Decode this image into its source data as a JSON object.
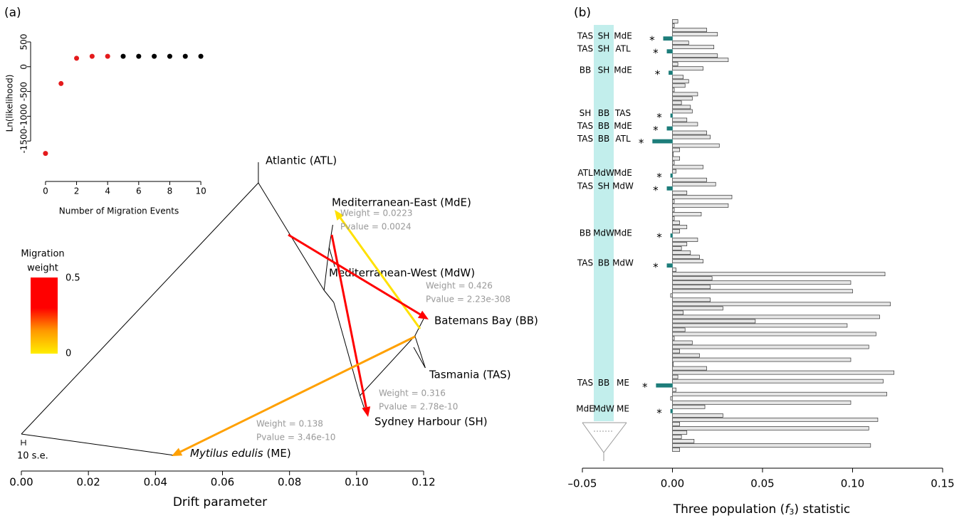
{
  "panel_labels": [
    "(a)",
    "(b)"
  ],
  "chart_data": [
    {
      "type": "scatter",
      "xlabel": "Number of Migration Events",
      "ylabel": "Ln(likelihood)",
      "x": [
        0,
        1,
        2,
        3,
        4,
        5,
        6,
        7,
        8,
        9,
        10
      ],
      "values": [
        -1750,
        -340,
        170,
        210,
        210,
        210,
        210,
        210,
        210,
        210,
        210
      ],
      "point_colors": [
        "#e41a1c",
        "#e41a1c",
        "#e41a1c",
        "#e41a1c",
        "#e41a1c",
        "#000000",
        "#000000",
        "#000000",
        "#000000",
        "#000000",
        "#000000"
      ],
      "xlim": [
        -0.5,
        10.5
      ],
      "xticks": [
        0,
        2,
        4,
        6,
        8,
        10
      ],
      "ylim": [
        -2100,
        700
      ],
      "yticks": [
        -1500,
        -1000,
        -500,
        0,
        500
      ]
    },
    {
      "type": "tree",
      "xlabel": "Drift parameter",
      "scale_bar_label": "10 s.e.",
      "xlim": [
        0,
        0.12
      ],
      "xticks": [
        {
          "value": 0,
          "label": "0.00"
        },
        {
          "value": 0.02,
          "label": "0.02"
        },
        {
          "value": 0.04,
          "label": "0.04"
        },
        {
          "value": 0.06,
          "label": "0.06"
        },
        {
          "value": 0.08,
          "label": "0.08"
        },
        {
          "value": 0.1,
          "label": "0.10"
        },
        {
          "value": 0.12,
          "label": "0.12"
        }
      ],
      "nodes": [
        {
          "x": 0
        },
        {
          "x": 0.0707,
          "parent": 0
        },
        {
          "x": 0.0707,
          "parent": 1,
          "label": "Atlantic (ATL)"
        },
        {
          "x": 0.0457,
          "parent": 0,
          "label_italic": "Mytilus edulis",
          "label": "(ME)"
        },
        {
          "x": 0.0903,
          "parent": 1
        },
        {
          "x": 0.0918,
          "parent": 4
        },
        {
          "x": 0.0929,
          "parent": 5,
          "label": "Mediterranean-East (MdE)"
        },
        {
          "x": 0.0935,
          "parent": 5,
          "label": "Mediterranean-West (MdW)"
        },
        {
          "x": 0.0932,
          "parent": 4
        },
        {
          "x": 0.101,
          "parent": 8
        },
        {
          "x": 0.1024,
          "parent": 9,
          "label": "Sydney Harbour (SH)"
        },
        {
          "x": 0.1174,
          "parent": 9
        },
        {
          "x": 0.12,
          "parent": 11,
          "label": "Batemans Bay (BB)"
        },
        {
          "x": 0.1205,
          "parent": 11,
          "label": "Tasmania (TAS)"
        }
      ],
      "migrations": [
        {
          "weight": 0.0223,
          "weight_label": "Weight = 0.0223",
          "pvalue_label": "Pvalue = 0.0024"
        },
        {
          "weight": 0.426,
          "weight_label": "Weight = 0.426",
          "pvalue_label": "Pvalue = 2.23e-308"
        },
        {
          "weight": 0.316,
          "weight_label": "Weight = 0.316",
          "pvalue_label": "Pvalue = 2.78e-10"
        },
        {
          "weight": 0.138,
          "weight_label": "Weight = 0.138",
          "pvalue_label": "Pvalue = 3.46e-10"
        }
      ],
      "legend_title": [
        "Migration",
        "weight"
      ],
      "clim": [
        0,
        0.5
      ]
    },
    {
      "type": "hbar",
      "xlabel_parts": [
        "Three population (",
        "f",
        "3",
        ") statistic"
      ],
      "color": "#e6e6e6",
      "highlight_color": "#1d7d7a",
      "values": [
        0.003,
        0.001,
        0.019,
        0.025,
        -0.005,
        0.009,
        0.023,
        -0.003,
        0.025,
        0.031,
        0.003,
        0.017,
        -0.002,
        0.006,
        0.009,
        0.007,
        0.001,
        0.014,
        0.011,
        0.005,
        0.01,
        0.011,
        -0.001,
        0.008,
        0.014,
        -0.003,
        0.019,
        0.021,
        -0.011,
        0.026,
        0.004,
        0.0005,
        0.004,
        0.001,
        0.017,
        0.002,
        -0.001,
        0.019,
        0.024,
        -0.003,
        0.008,
        0.033,
        0.001,
        0.031,
        0.001,
        0.016,
        0.001,
        0.004,
        0.008,
        0.004,
        -0.001,
        0.014,
        0.008,
        0.005,
        0.01,
        0.015,
        0.017,
        -0.003,
        0.002,
        0.118,
        0.022,
        0.099,
        0.021,
        0.1,
        -0.001,
        0.021,
        0.121,
        0.028,
        0.006,
        0.115,
        0.046,
        0.097,
        0.007,
        0.113,
        0.001,
        0.011,
        0.109,
        0.004,
        0.015,
        0.099,
        0.0005,
        0.019,
        0.123,
        0.003,
        0.117,
        -0.009,
        0.002,
        0.119,
        -0.001,
        0.099,
        0.018,
        -0.001,
        0.028,
        0.114,
        0.004,
        0.109,
        0.008,
        0.005,
        0.012,
        0.11,
        0.004
      ],
      "significance_label": "*",
      "triplets": [
        {
          "index": 4,
          "labels": [
            "TAS",
            "SH",
            "MdE"
          ]
        },
        {
          "index": 7,
          "labels": [
            "TAS",
            "SH",
            "ATL"
          ]
        },
        {
          "index": 12,
          "labels": [
            "BB",
            "SH",
            "MdE"
          ]
        },
        {
          "index": 22,
          "labels": [
            "SH",
            "BB",
            "TAS"
          ]
        },
        {
          "index": 25,
          "labels": [
            "TAS",
            "BB",
            "MdE"
          ]
        },
        {
          "index": 28,
          "labels": [
            "TAS",
            "BB",
            "ATL"
          ]
        },
        {
          "index": 36,
          "labels": [
            "ATL",
            "MdW",
            "MdE"
          ]
        },
        {
          "index": 39,
          "labels": [
            "TAS",
            "SH",
            "MdW"
          ]
        },
        {
          "index": 50,
          "labels": [
            "BB",
            "MdW",
            "MdE"
          ]
        },
        {
          "index": 57,
          "labels": [
            "TAS",
            "BB",
            "MdW"
          ]
        },
        {
          "index": 85,
          "labels": [
            "TAS",
            "BB",
            "ME"
          ]
        },
        {
          "index": 91,
          "labels": [
            "MdE",
            "MdW",
            "ME"
          ]
        }
      ],
      "xlim": [
        -0.05,
        0.15
      ],
      "xticks": [
        {
          "value": -0.05,
          "label": "–0.05"
        },
        {
          "value": 0,
          "label": "0.00"
        },
        {
          "value": 0.05,
          "label": "0.05"
        },
        {
          "value": 0.1,
          "label": "0.10"
        },
        {
          "value": 0.15,
          "label": "0.15"
        }
      ]
    }
  ]
}
